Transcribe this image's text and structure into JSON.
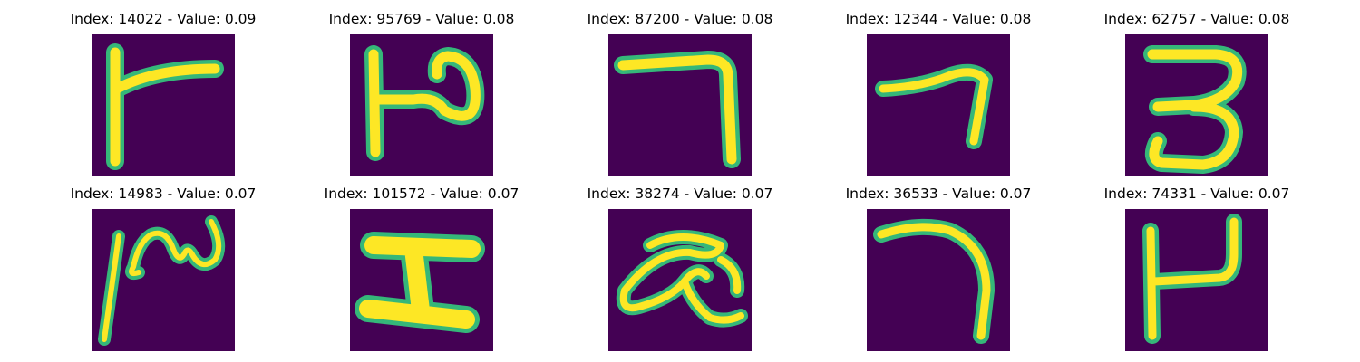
{
  "colors": {
    "background": "#440154",
    "stroke": "#fde725",
    "stroke_edge": "#35b779",
    "stroke_mid": "#21918c"
  },
  "panels": [
    {
      "index": "14022",
      "value": "0.09",
      "title": "Index: 14022 - Value: 0.09"
    },
    {
      "index": "95769",
      "value": "0.08",
      "title": "Index: 95769 - Value: 0.08"
    },
    {
      "index": "87200",
      "value": "0.08",
      "title": "Index: 87200 - Value: 0.08"
    },
    {
      "index": "12344",
      "value": "0.08",
      "title": "Index: 12344 - Value: 0.08"
    },
    {
      "index": "62757",
      "value": "0.08",
      "title": "Index: 62757 - Value: 0.08"
    },
    {
      "index": "14983",
      "value": "0.07",
      "title": "Index: 14983 - Value: 0.07"
    },
    {
      "index": "101572",
      "value": "0.07",
      "title": "Index: 101572 - Value: 0.07"
    },
    {
      "index": "38274",
      "value": "0.07",
      "title": "Index: 38274 - Value: 0.07"
    },
    {
      "index": "36533",
      "value": "0.07",
      "title": "Index: 36533 - Value: 0.07"
    },
    {
      "index": "74331",
      "value": "0.07",
      "title": "Index: 74331 - Value: 0.07"
    }
  ]
}
